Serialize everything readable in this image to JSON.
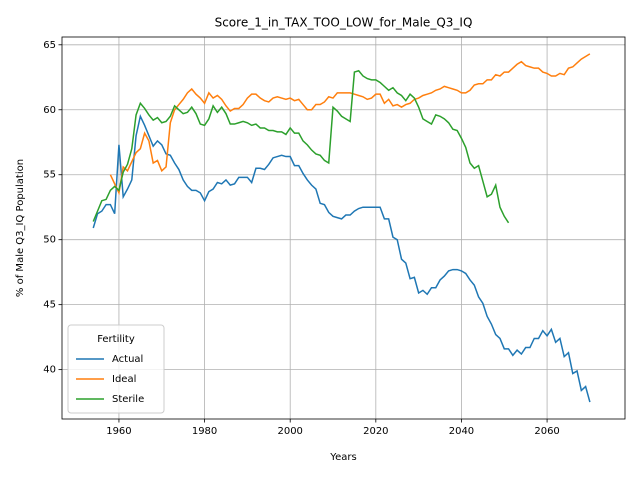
{
  "chart_data": {
    "type": "line",
    "title": "Score_1_in_TAX_TOO_LOW_for_Male_Q3_IQ",
    "xlabel": "Years",
    "ylabel": "% of Male Q3_IQ Population",
    "x": [
      1954,
      1955,
      1956,
      1957,
      1958,
      1959,
      1960,
      1961,
      1962,
      1963,
      1964,
      1965,
      1966,
      1967,
      1968,
      1969,
      1970,
      1971,
      1972,
      1973,
      1974,
      1975,
      1976,
      1977,
      1978,
      1979,
      1980,
      1981,
      1982,
      1983,
      1984,
      1985,
      1986,
      1987,
      1988,
      1989,
      1990,
      1991,
      1992,
      1993,
      1994,
      1995,
      1996,
      1997,
      1998,
      1999,
      2000,
      2001,
      2002,
      2003,
      2004,
      2005,
      2006,
      2007,
      2008,
      2009,
      2010,
      2011,
      2012,
      2013,
      2014,
      2015,
      2016,
      2017,
      2018,
      2019,
      2020,
      2021,
      2022,
      2023,
      2024,
      2025,
      2026,
      2027,
      2028,
      2029,
      2030,
      2031,
      2032,
      2033,
      2034,
      2035,
      2036,
      2037,
      2038,
      2039,
      2040,
      2041,
      2042,
      2043,
      2044,
      2045,
      2046,
      2047,
      2048,
      2049,
      2050,
      2051,
      2052,
      2053,
      2054,
      2055,
      2056,
      2057,
      2058,
      2059,
      2060,
      2061,
      2062,
      2063,
      2064,
      2065,
      2066,
      2067,
      2068,
      2069,
      2070
    ],
    "series": [
      {
        "name": "Actual",
        "color": "#1f77b4",
        "values": [
          50.9,
          52.0,
          52.2,
          52.7,
          52.7,
          52.0,
          57.3,
          53.3,
          53.9,
          54.6,
          58.0,
          59.5,
          58.8,
          58.0,
          57.2,
          57.6,
          57.3,
          56.6,
          56.5,
          55.9,
          55.4,
          54.6,
          54.1,
          53.8,
          53.8,
          53.6,
          53.0,
          53.7,
          53.9,
          54.4,
          54.3,
          54.6,
          54.2,
          54.3,
          54.8,
          54.8,
          54.8,
          54.4,
          55.5,
          55.5,
          55.4,
          55.8,
          56.3,
          56.4,
          56.5,
          56.4,
          56.4,
          55.7,
          55.7,
          55.1,
          54.6,
          54.2,
          53.9,
          52.8,
          52.7,
          52.1,
          51.8,
          51.7,
          51.6,
          51.9,
          51.9,
          52.2,
          52.4,
          52.5,
          52.5,
          52.5,
          52.5,
          52.5,
          51.6,
          51.6,
          50.2,
          50.0,
          48.5,
          48.2,
          47.0,
          47.1,
          45.9,
          46.1,
          45.8,
          46.3,
          46.3,
          46.9,
          47.2,
          47.6,
          47.7,
          47.7,
          47.6,
          47.4,
          46.9,
          46.5,
          45.6,
          45.1,
          44.1,
          43.5,
          42.7,
          42.4,
          41.6,
          41.6,
          41.1,
          41.5,
          41.2,
          41.7,
          41.7,
          42.4,
          42.4,
          43.0,
          42.6,
          43.1,
          42.1,
          42.4,
          41.0,
          41.3,
          39.7,
          39.9,
          38.4,
          38.7,
          37.5
        ]
      },
      {
        "name": "Ideal",
        "color": "#ff7f0e",
        "values": [
          null,
          null,
          null,
          null,
          55.0,
          54.3,
          53.6,
          55.6,
          55.3,
          56.0,
          56.7,
          57.0,
          58.2,
          57.6,
          55.9,
          56.1,
          55.3,
          55.6,
          59.0,
          60.0,
          60.4,
          60.8,
          61.3,
          61.6,
          61.2,
          60.9,
          60.5,
          61.3,
          60.9,
          61.1,
          60.8,
          60.3,
          59.9,
          60.1,
          60.1,
          60.4,
          60.9,
          61.2,
          61.2,
          60.9,
          60.7,
          60.6,
          60.9,
          61.0,
          60.9,
          60.8,
          60.9,
          60.7,
          60.8,
          60.4,
          60.0,
          60.0,
          60.4,
          60.4,
          60.6,
          61.0,
          60.9,
          61.3,
          61.3,
          61.3,
          61.3,
          61.2,
          61.1,
          61.0,
          60.8,
          60.9,
          61.2,
          61.2,
          60.5,
          60.8,
          60.3,
          60.4,
          60.2,
          60.4,
          60.5,
          60.8,
          60.9,
          61.1,
          61.2,
          61.3,
          61.5,
          61.6,
          61.8,
          61.7,
          61.6,
          61.5,
          61.3,
          61.3,
          61.5,
          61.9,
          62.0,
          62.0,
          62.3,
          62.3,
          62.7,
          62.6,
          62.9,
          62.9,
          63.2,
          63.5,
          63.7,
          63.4,
          63.3,
          63.2,
          63.2,
          62.9,
          62.8,
          62.6,
          62.6,
          62.8,
          62.7,
          63.2,
          63.3,
          63.6,
          63.9,
          64.1,
          64.3
        ]
      },
      {
        "name": "Sterile",
        "color": "#2ca02c",
        "values": [
          51.4,
          52.2,
          53.0,
          53.1,
          53.8,
          54.1,
          53.8,
          55.2,
          55.8,
          57.0,
          59.6,
          60.5,
          60.1,
          59.6,
          59.2,
          59.4,
          59.0,
          59.1,
          59.5,
          60.3,
          60.0,
          59.7,
          59.8,
          60.2,
          59.7,
          58.9,
          58.8,
          59.3,
          60.3,
          59.8,
          60.2,
          59.7,
          58.9,
          58.9,
          59.0,
          59.1,
          59.0,
          58.8,
          58.9,
          58.6,
          58.6,
          58.4,
          58.4,
          58.3,
          58.3,
          58.1,
          58.6,
          58.2,
          58.2,
          57.6,
          57.3,
          56.9,
          56.6,
          56.5,
          56.1,
          55.9,
          60.2,
          59.9,
          59.5,
          59.3,
          59.1,
          62.9,
          63.0,
          62.6,
          62.4,
          62.3,
          62.3,
          62.1,
          61.8,
          61.5,
          61.7,
          61.3,
          61.1,
          60.7,
          61.2,
          60.9,
          60.2,
          59.3,
          59.1,
          58.9,
          59.6,
          59.5,
          59.3,
          59.0,
          58.5,
          58.4,
          57.8,
          57.1,
          55.9,
          55.5,
          55.7,
          54.5,
          53.3,
          53.5,
          54.2,
          52.5,
          51.8,
          51.3,
          null,
          null,
          null,
          null,
          null,
          null,
          null,
          null,
          null,
          null,
          null,
          null,
          null,
          null,
          null,
          null,
          null,
          null,
          null
        ]
      }
    ],
    "xlim": [
      1946.7,
      2078.2
    ],
    "xticks": [
      1960,
      1980,
      2000,
      2020,
      2040,
      2060
    ],
    "ylim": [
      36.2,
      65.6
    ],
    "yticks": [
      40,
      45,
      50,
      55,
      60,
      65
    ],
    "grid": true,
    "legend_title": "Fertility",
    "legend_loc": "lower left"
  }
}
